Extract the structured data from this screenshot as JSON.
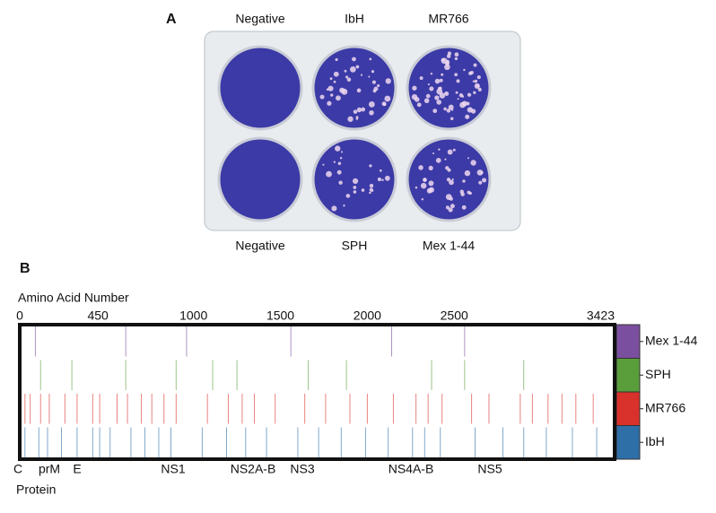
{
  "panel_a": {
    "label": "A",
    "top_labels": [
      "Negative",
      "IbH",
      "MR766"
    ],
    "bottom_labels": [
      "Negative",
      "SPH",
      "Mex 1-44"
    ]
  },
  "chart_data": {
    "type": "variants",
    "panel_label": "B",
    "x_label": "Amino Acid Number",
    "xlim": [
      0,
      3423
    ],
    "xticks": [
      0,
      450,
      1000,
      1500,
      2000,
      2500,
      3423
    ],
    "proteins": [
      "C",
      "prM",
      "E",
      "NS1",
      "NS2A-B",
      "NS3",
      "NS4A-B",
      "NS5"
    ],
    "protein_label": "Protein",
    "series": [
      {
        "name": "Mex 1-44",
        "color": "#7b4fa0",
        "positions": [
          90,
          610,
          960,
          1560,
          2140,
          2560
        ]
      },
      {
        "name": "SPH",
        "color": "#5a9e3c",
        "positions": [
          120,
          300,
          610,
          900,
          1110,
          1250,
          1660,
          1880,
          2370,
          2560,
          2900
        ]
      },
      {
        "name": "MR766",
        "color": "#d9312b",
        "positions": [
          30,
          60,
          120,
          170,
          260,
          330,
          420,
          460,
          560,
          620,
          700,
          760,
          830,
          900,
          1080,
          1200,
          1280,
          1350,
          1470,
          1640,
          1760,
          1900,
          2000,
          2150,
          2280,
          2350,
          2430,
          2600,
          2700,
          2880,
          2950,
          3040,
          3120,
          3200,
          3300
        ]
      },
      {
        "name": "IbH",
        "color": "#2f6fa8",
        "positions": [
          30,
          110,
          160,
          240,
          330,
          420,
          460,
          520,
          640,
          720,
          800,
          870,
          1050,
          1190,
          1300,
          1420,
          1600,
          1720,
          1850,
          1990,
          2120,
          2260,
          2330,
          2420,
          2620,
          2780,
          2900,
          3030,
          3180,
          3320
        ]
      }
    ]
  }
}
